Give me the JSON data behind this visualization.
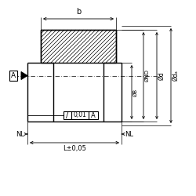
{
  "bg_color": "#ffffff",
  "line_color": "#000000",
  "fig_width": 2.5,
  "fig_height": 2.5,
  "dpi": 100,
  "annotations": {
    "b_label": "b",
    "L_label": "L±0,05",
    "NL_left": "NL",
    "NL_right": "NL",
    "A_box": "A",
    "diam_B": "ØB",
    "diam_ND": "ØND",
    "diam_d": "Ød",
    "diam_da": "Ødₐ"
  }
}
